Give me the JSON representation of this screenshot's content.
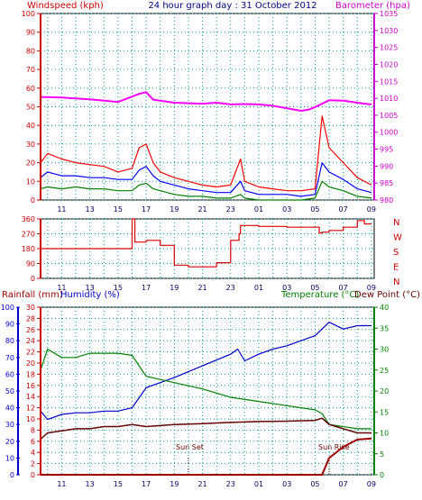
{
  "header": {
    "windspeed_label": "Windspeed (kph)",
    "title": "24 hour graph day : 31 October 2012",
    "barometer_label": "Barometer (hpa)"
  },
  "lower_header": {
    "rain_label": "Rainfall (mm)",
    "humidity_label": "Humidity (%)",
    "temp_label": "Temperature (°C)",
    "dew_label": "Dew Point (°C)"
  },
  "annotations": {
    "sunset": "Sun Set",
    "sunrise": "Sun Rise"
  },
  "colors": {
    "wind_axis": "#cc0000",
    "baro_axis": "#cc00cc",
    "gust": "#ff0000",
    "avg": "#0000ff",
    "wind_min": "#008000",
    "barometer": "#ff00ff",
    "direction": "#dd0000",
    "rain": "#a00000",
    "humidity": "#0000cc",
    "temperature": "#008000",
    "dew": "#660000",
    "left_axis_rain": "#cc0000",
    "left_axis_hum": "#0000cc",
    "right_axis_temp": "#008000",
    "grid": "#009999",
    "frame": "#000000"
  },
  "chart_data": [
    {
      "type": "line",
      "title": "24 hour graph day : 31 October 2012",
      "x_ticks": [
        "11",
        "13",
        "15",
        "17",
        "19",
        "21",
        "23",
        "01",
        "03",
        "05",
        "07",
        "09"
      ],
      "y_left": {
        "label": "Windspeed (kph)",
        "ticks": [
          "0",
          "10",
          "20",
          "30",
          "40",
          "50",
          "60",
          "70",
          "80",
          "90",
          "100"
        ],
        "range": [
          0,
          100
        ]
      },
      "y_right": {
        "label": "Barometer (hpa)",
        "ticks": [
          "980",
          "985",
          "990",
          "995",
          "1000",
          "1005",
          "1010",
          "1015",
          "1020",
          "1025",
          "1030",
          "1035"
        ],
        "range": [
          980,
          1035
        ]
      },
      "series": [
        {
          "name": "Windspeed gust",
          "axis": "left",
          "x": [
            9.5,
            10,
            11,
            12,
            13,
            14,
            15,
            16,
            16.5,
            17,
            17.5,
            18,
            19,
            20,
            21,
            22,
            23,
            23.7,
            24,
            25,
            26,
            27,
            28,
            29,
            29.5,
            30,
            31,
            32,
            33
          ],
          "values": [
            20,
            25,
            22,
            20,
            19,
            18,
            15,
            17,
            28,
            30,
            20,
            15,
            12,
            10,
            8,
            7,
            8,
            22,
            10,
            7,
            6,
            5,
            5,
            6,
            45,
            28,
            20,
            12,
            8
          ]
        },
        {
          "name": "Windspeed average",
          "axis": "left",
          "x": [
            9.5,
            10,
            11,
            12,
            13,
            14,
            15,
            16,
            16.5,
            17,
            17.5,
            18,
            19,
            20,
            21,
            22,
            23,
            23.7,
            24,
            25,
            26,
            27,
            28,
            29,
            29.5,
            30,
            31,
            32,
            33
          ],
          "values": [
            12,
            15,
            13,
            13,
            12,
            12,
            11,
            11,
            16,
            18,
            13,
            10,
            8,
            6,
            5,
            4,
            4,
            10,
            5,
            3,
            3,
            3,
            2,
            3,
            20,
            15,
            11,
            6,
            4
          ]
        },
        {
          "name": "Windspeed minimum",
          "axis": "left",
          "x": [
            9.5,
            10,
            11,
            12,
            13,
            14,
            15,
            16,
            16.5,
            17,
            17.5,
            18,
            19,
            20,
            21,
            22,
            23,
            23.7,
            24,
            25,
            26,
            27,
            28,
            29,
            29.5,
            30,
            31,
            32,
            33
          ],
          "values": [
            6,
            7,
            6,
            7,
            6,
            6,
            5,
            5,
            8,
            9,
            6,
            5,
            3,
            2,
            2,
            1,
            1,
            3,
            1,
            0,
            0,
            0,
            0,
            1,
            10,
            7,
            5,
            2,
            1
          ]
        },
        {
          "name": "Barometer",
          "axis": "right",
          "x": [
            9.5,
            11,
            13,
            15,
            16.5,
            17,
            17.5,
            19,
            21,
            22,
            23,
            24,
            25,
            26,
            28,
            28.5,
            29,
            29.5,
            30,
            31,
            32,
            32.5,
            33
          ],
          "values": [
            1010.4,
            1010.2,
            1009.7,
            1008.9,
            1011.3,
            1011.8,
            1009.6,
            1008.7,
            1008.4,
            1008.7,
            1008.2,
            1008.3,
            1008.2,
            1007.8,
            1006.3,
            1006.6,
            1007.4,
            1008.4,
            1009.4,
            1009.3,
            1008.7,
            1008.4,
            1008.2
          ]
        }
      ]
    },
    {
      "type": "line",
      "title": "",
      "x_ticks": [
        "11",
        "13",
        "15",
        "17",
        "19",
        "21",
        "23",
        "01",
        "03",
        "05",
        "07",
        "09"
      ],
      "y_left": {
        "label": "",
        "ticks": [
          "0",
          "90",
          "180",
          "270",
          "360"
        ],
        "range": [
          0,
          360
        ]
      },
      "direction_labels": [
        "N",
        "W",
        "S",
        "E",
        "N"
      ],
      "series": [
        {
          "name": "Wind direction",
          "x": [
            9.5,
            15,
            16,
            16.2,
            17,
            18,
            19,
            20,
            21,
            22,
            23,
            23.6,
            23.7,
            25,
            27,
            28,
            29,
            29.3,
            29.5,
            30,
            31,
            32,
            32.5,
            33
          ],
          "values": [
            180,
            180,
            360,
            220,
            230,
            200,
            80,
            70,
            70,
            95,
            230,
            270,
            320,
            315,
            310,
            310,
            310,
            275,
            280,
            290,
            310,
            350,
            330,
            330
          ]
        }
      ]
    },
    {
      "type": "line",
      "title": "",
      "x_ticks": [
        "11",
        "13",
        "15",
        "17",
        "19",
        "21",
        "23",
        "01",
        "03",
        "05",
        "07",
        "09"
      ],
      "y_left_outer": {
        "label": "Humidity (%)",
        "ticks": [
          "0",
          "10",
          "20",
          "30",
          "40",
          "50",
          "60",
          "70",
          "80",
          "90",
          "100"
        ],
        "range": [
          0,
          100
        ]
      },
      "y_left_inner": {
        "label": "Rainfall (mm)",
        "ticks": [
          "0",
          "2",
          "4",
          "6",
          "8",
          "10",
          "12",
          "14",
          "16",
          "18",
          "20",
          "22",
          "24",
          "26",
          "28",
          "30"
        ],
        "range": [
          0,
          30
        ]
      },
      "y_right": {
        "label": "Temperature (°C)Dew Point (°C)",
        "ticks": [
          "0",
          "5",
          "10",
          "15",
          "20",
          "25",
          "30",
          "35",
          "40"
        ],
        "range": [
          0,
          40
        ]
      },
      "series": [
        {
          "name": "Rainfall",
          "axis": "inner",
          "x": [
            9.5,
            29.5,
            30,
            31,
            32,
            33
          ],
          "values": [
            0,
            0,
            3,
            5,
            6.3,
            6.5
          ]
        },
        {
          "name": "Humidity",
          "axis": "outer",
          "x": [
            9.5,
            10,
            11,
            12,
            13,
            14,
            15,
            16,
            17,
            19,
            21,
            23,
            23.5,
            24,
            25,
            26,
            27,
            28,
            29,
            30,
            31,
            32,
            33
          ],
          "values": [
            38,
            33,
            36,
            37,
            37,
            38,
            38,
            40,
            52,
            58,
            65,
            72,
            75,
            68,
            72,
            75,
            77,
            80,
            83,
            91,
            87,
            89,
            89
          ]
        },
        {
          "name": "Temperature",
          "axis": "right",
          "x": [
            9.5,
            10,
            11,
            12,
            13,
            14,
            15,
            16,
            17,
            19,
            21,
            23,
            25,
            27,
            29,
            29.5,
            30,
            31,
            32,
            33
          ],
          "values": [
            25,
            30,
            28,
            28,
            29,
            29,
            29,
            28.5,
            23.5,
            22,
            20.5,
            18.5,
            17.5,
            16.5,
            15.5,
            14.6,
            12,
            11.5,
            11,
            11
          ]
        },
        {
          "name": "Dew Point",
          "axis": "right",
          "x": [
            9.5,
            10,
            11,
            12,
            13,
            14,
            15,
            16,
            17,
            19,
            21,
            23,
            25,
            27,
            29,
            29.5,
            30,
            31,
            32,
            33
          ],
          "values": [
            8.5,
            10,
            10.5,
            11,
            11,
            11.5,
            11.5,
            12,
            11.5,
            12,
            12.2,
            12.5,
            12.7,
            12.8,
            13,
            13.5,
            12,
            11,
            10,
            10
          ]
        }
      ]
    }
  ]
}
